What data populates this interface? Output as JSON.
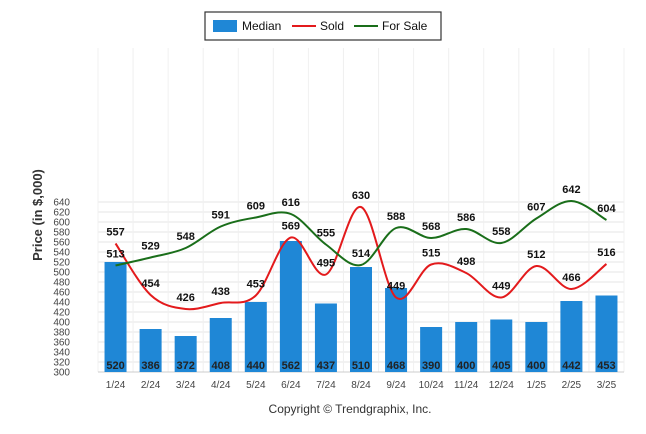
{
  "chart_data": {
    "type": "bar",
    "categories": [
      "1/24",
      "2/24",
      "3/24",
      "4/24",
      "5/24",
      "6/24",
      "7/24",
      "8/24",
      "9/24",
      "10/24",
      "11/24",
      "12/24",
      "1/25",
      "2/25",
      "3/25"
    ],
    "series": [
      {
        "name": "Median",
        "type": "bar",
        "color": "#1f87d6",
        "values": [
          520,
          386,
          372,
          408,
          440,
          562,
          437,
          510,
          468,
          390,
          400,
          405,
          400,
          442,
          453
        ]
      },
      {
        "name": "Sold",
        "type": "line",
        "color": "#e31a1c",
        "values": [
          557,
          454,
          426,
          438,
          453,
          569,
          495,
          630,
          449,
          515,
          498,
          449,
          512,
          466,
          516
        ]
      },
      {
        "name": "For Sale",
        "type": "line",
        "color": "#1a6e1a",
        "values": [
          513,
          529,
          548,
          591,
          609,
          616,
          555,
          514,
          588,
          568,
          586,
          558,
          607,
          642,
          604
        ]
      }
    ],
    "ylabel": "Price (in $,000)",
    "ylim": [
      300,
      650
    ],
    "yticks": [
      300,
      320,
      340,
      360,
      380,
      400,
      420,
      440,
      460,
      480,
      500,
      520,
      540,
      560,
      580,
      600,
      620,
      640
    ],
    "grid": true,
    "legend_position": "top-center"
  },
  "copyright": "Copyright © Trendgraphix, Inc."
}
